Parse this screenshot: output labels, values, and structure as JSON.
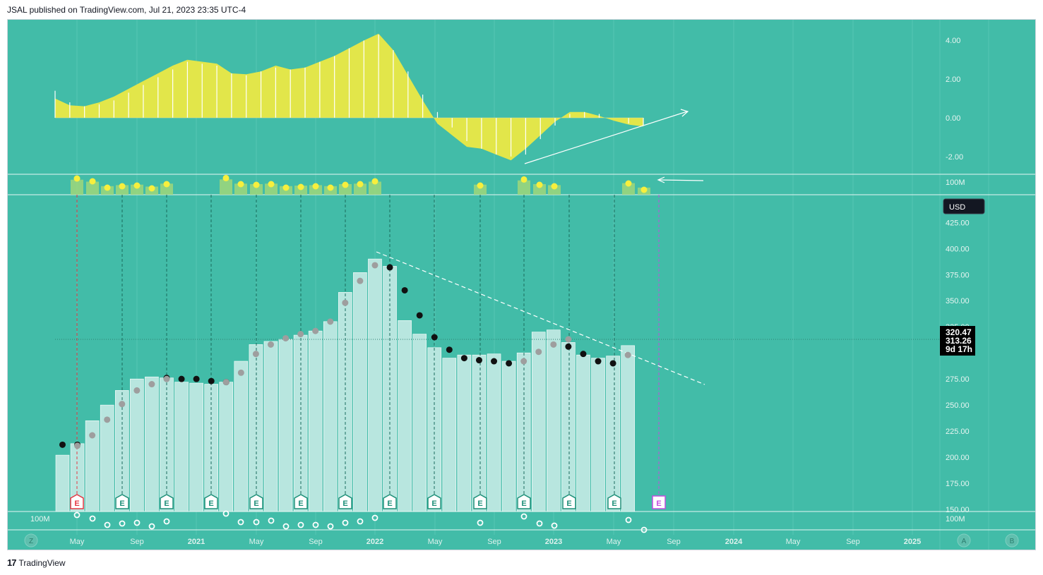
{
  "header": {
    "published_text": "JSAL published on TradingView.com, Jul 21, 2023 23:35 UTC-4"
  },
  "footer": {
    "brand": "TradingView",
    "logo_glyph": "17"
  },
  "buttons": {
    "left": "Z",
    "auto": "A",
    "right": "B"
  },
  "colors": {
    "background": "#42bca8",
    "bar_fill": "#b8e6df",
    "oscillator_fill": "#e2e64a",
    "dot_black": "#111111",
    "dot_grey": "#9e9e9e",
    "marker_yellow": "#f7ef3d",
    "earnings_green": "#1e8f78",
    "earnings_red": "#e53945",
    "earnings_purple": "#c44ce0"
  },
  "chart_data": [
    {
      "type": "bar",
      "pane": "price",
      "y_axis_values": [
        "425.00",
        "400.00",
        "375.00",
        "350.00",
        "325.00",
        "300.00",
        "275.00",
        "250.00",
        "225.00",
        "200.00",
        "175.00",
        "150.00"
      ],
      "ylim": [
        150,
        425
      ],
      "currency_label": "USD",
      "last_price_label": "320.47",
      "second_price_label": "313.26",
      "countdown_label": "9d 17h",
      "x_labels": [
        "May",
        "Sep",
        "2021",
        "May",
        "Sep",
        "2022",
        "May",
        "Sep",
        "2023",
        "May",
        "Sep",
        "2024",
        "May",
        "Sep",
        "2025"
      ],
      "values": [
        202,
        213,
        235,
        250,
        264,
        275,
        277,
        276,
        272,
        271,
        270,
        272,
        292,
        308,
        311,
        313,
        317,
        321,
        330,
        358,
        377,
        390,
        383,
        331,
        318,
        305,
        295,
        298,
        298,
        299,
        292,
        300,
        320,
        322,
        310,
        298,
        295,
        297,
        307
      ],
      "black_dots": [
        212,
        212,
        null,
        null,
        null,
        null,
        null,
        276,
        275,
        275,
        273,
        272,
        null,
        null,
        null,
        null,
        null,
        null,
        null,
        null,
        null,
        null,
        382,
        360,
        336,
        315,
        303,
        295,
        293,
        292,
        290,
        null,
        null,
        null,
        306,
        299,
        292,
        290,
        null
      ],
      "grey_dots": [
        null,
        211,
        221,
        236,
        251,
        264,
        270,
        275,
        null,
        null,
        null,
        272,
        281,
        299,
        308,
        314,
        318,
        321,
        330,
        348,
        369,
        384,
        null,
        null,
        null,
        null,
        null,
        null,
        null,
        null,
        null,
        292,
        301,
        308,
        313,
        null,
        null,
        null,
        298
      ],
      "earnings_markers": [
        "E",
        "E",
        "E",
        "E",
        "E",
        "E",
        "E",
        "E",
        "E",
        "E",
        "E",
        "E",
        "E",
        "E"
      ],
      "trendline": "dashed descending resistance"
    },
    {
      "type": "area",
      "pane": "oscillator",
      "y_axis_values": [
        "4.00",
        "2.00",
        "0.00",
        "-2.00"
      ],
      "ylim": [
        -2.4,
        4.3
      ],
      "values": [
        1.0,
        0.65,
        0.6,
        0.8,
        1.1,
        1.5,
        1.9,
        2.3,
        2.7,
        3.0,
        2.9,
        2.8,
        2.3,
        2.25,
        2.4,
        2.7,
        2.5,
        2.6,
        2.9,
        3.2,
        3.6,
        4.0,
        4.35,
        3.5,
        2.2,
        0.9,
        -0.3,
        -0.9,
        -1.5,
        -1.6,
        -1.9,
        -2.2,
        -1.6,
        -0.9,
        -0.2,
        0.3,
        0.3,
        0.1,
        -0.15,
        -0.35,
        -0.45
      ],
      "histogram": [
        1.4,
        0.8,
        0.6,
        0.7,
        0.9,
        1.3,
        1.7,
        2.1,
        2.5,
        2.9,
        2.8,
        2.7,
        2.3,
        2.2,
        2.4,
        2.6,
        2.5,
        2.6,
        2.9,
        3.2,
        3.6,
        4.0,
        4.3,
        3.5,
        2.4,
        1.2,
        0.3,
        -0.5,
        -1.2,
        -1.6,
        -1.9,
        -2.0,
        -1.9,
        -1.1,
        -0.4,
        0.2,
        0.3,
        0.2,
        0.0,
        -0.3,
        -0.4
      ]
    },
    {
      "type": "bar",
      "pane": "volume-top",
      "axis_label": "100M",
      "yellow_markers": [
        0.95,
        0.75,
        0.3,
        0.4,
        0.45,
        0.25,
        0.55,
        0.98,
        0.55,
        0.5,
        0.55,
        0.3,
        0.35,
        0.4,
        0.3,
        0.5,
        0.55,
        0.75,
        0.45,
        0.88,
        0.5,
        0.4,
        0.6,
        0.15
      ]
    },
    {
      "type": "scatter",
      "pane": "volume-bottom",
      "axis_label_left": "100M",
      "axis_label_right": "100M"
    }
  ]
}
